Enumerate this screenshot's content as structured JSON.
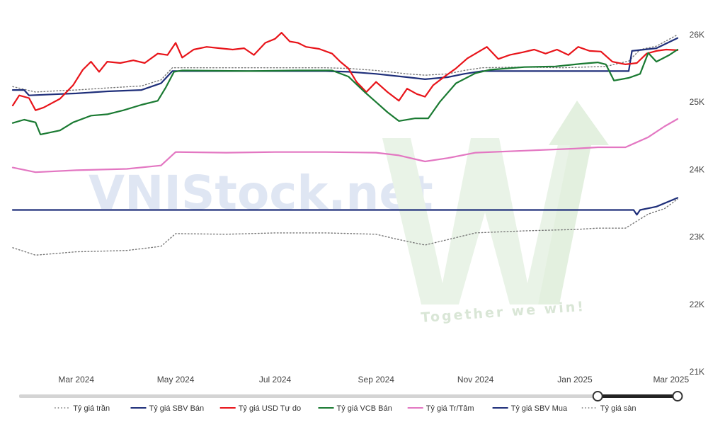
{
  "chart_data": {
    "type": "line",
    "title": "",
    "xlabel": "",
    "ylabel": "",
    "x_range": [
      "2024-01-22",
      "2025-03-05"
    ],
    "ylim": [
      21000,
      26200
    ],
    "y_ticks": [
      21000,
      22000,
      23000,
      24000,
      25000,
      26000
    ],
    "y_tick_labels": [
      "21K",
      "22K",
      "23K",
      "24K",
      "25K",
      "26K"
    ],
    "x_ticks": [
      "2024-03-01",
      "2024-05-01",
      "2024-07-01",
      "2024-09-01",
      "2024-11-01",
      "2025-01-01",
      "2025-03-01"
    ],
    "x_tick_labels": [
      "Mar 2024",
      "May 2024",
      "Jul 2024",
      "Sep 2024",
      "Nov 2024",
      "Jan 2025",
      "Mar 2025"
    ],
    "grid": false,
    "legend_position": "bottom",
    "series": [
      {
        "name": "Tỷ giá trần",
        "color": "#777777",
        "style": "dotted",
        "points": [
          [
            "2024-01-22",
            25230
          ],
          [
            "2024-02-05",
            25150
          ],
          [
            "2024-02-20",
            25170
          ],
          [
            "2024-03-01",
            25180
          ],
          [
            "2024-03-20",
            25210
          ],
          [
            "2024-04-10",
            25240
          ],
          [
            "2024-04-22",
            25330
          ],
          [
            "2024-04-29",
            25510
          ],
          [
            "2024-06-15",
            25510
          ],
          [
            "2024-08-01",
            25510
          ],
          [
            "2024-08-15",
            25500
          ],
          [
            "2024-09-01",
            25470
          ],
          [
            "2024-09-20",
            25420
          ],
          [
            "2024-10-01",
            25400
          ],
          [
            "2024-10-15",
            25420
          ],
          [
            "2024-10-25",
            25470
          ],
          [
            "2024-11-05",
            25510
          ],
          [
            "2024-12-01",
            25520
          ],
          [
            "2024-12-25",
            25510
          ],
          [
            "2025-01-20",
            25530
          ],
          [
            "2025-02-03",
            25610
          ],
          [
            "2025-02-10",
            25780
          ],
          [
            "2025-02-20",
            25830
          ],
          [
            "2025-03-05",
            26000
          ]
        ]
      },
      {
        "name": "Tỷ giá SBV Bán",
        "color": "#1f2f7a",
        "style": "solid",
        "points": [
          [
            "2024-01-22",
            25180
          ],
          [
            "2024-01-29",
            25180
          ],
          [
            "2024-02-01",
            25100
          ],
          [
            "2024-02-20",
            25120
          ],
          [
            "2024-03-01",
            25130
          ],
          [
            "2024-03-20",
            25160
          ],
          [
            "2024-04-10",
            25180
          ],
          [
            "2024-04-22",
            25280
          ],
          [
            "2024-04-29",
            25460
          ],
          [
            "2024-06-15",
            25460
          ],
          [
            "2024-08-01",
            25460
          ],
          [
            "2024-08-15",
            25450
          ],
          [
            "2024-09-01",
            25420
          ],
          [
            "2024-09-20",
            25370
          ],
          [
            "2024-10-01",
            25340
          ],
          [
            "2024-10-15",
            25370
          ],
          [
            "2024-10-25",
            25420
          ],
          [
            "2024-11-05",
            25460
          ],
          [
            "2024-12-01",
            25460
          ],
          [
            "2025-01-20",
            25460
          ],
          [
            "2025-02-03",
            25460
          ],
          [
            "2025-02-05",
            25760
          ],
          [
            "2025-02-20",
            25800
          ],
          [
            "2025-03-05",
            25950
          ]
        ]
      },
      {
        "name": "Tỷ giá USD Tự do",
        "color": "#e8141a",
        "style": "solid",
        "points": [
          [
            "2024-01-22",
            24950
          ],
          [
            "2024-01-26",
            25100
          ],
          [
            "2024-02-01",
            25060
          ],
          [
            "2024-02-05",
            24880
          ],
          [
            "2024-02-10",
            24920
          ],
          [
            "2024-02-20",
            25050
          ],
          [
            "2024-02-28",
            25250
          ],
          [
            "2024-03-05",
            25480
          ],
          [
            "2024-03-10",
            25600
          ],
          [
            "2024-03-15",
            25450
          ],
          [
            "2024-03-20",
            25600
          ],
          [
            "2024-03-28",
            25580
          ],
          [
            "2024-04-05",
            25620
          ],
          [
            "2024-04-12",
            25580
          ],
          [
            "2024-04-20",
            25720
          ],
          [
            "2024-04-26",
            25700
          ],
          [
            "2024-05-01",
            25880
          ],
          [
            "2024-05-05",
            25660
          ],
          [
            "2024-05-12",
            25780
          ],
          [
            "2024-05-20",
            25820
          ],
          [
            "2024-05-28",
            25800
          ],
          [
            "2024-06-05",
            25780
          ],
          [
            "2024-06-12",
            25800
          ],
          [
            "2024-06-18",
            25700
          ],
          [
            "2024-06-25",
            25880
          ],
          [
            "2024-07-01",
            25940
          ],
          [
            "2024-07-05",
            26030
          ],
          [
            "2024-07-10",
            25900
          ],
          [
            "2024-07-15",
            25880
          ],
          [
            "2024-07-20",
            25820
          ],
          [
            "2024-07-28",
            25790
          ],
          [
            "2024-08-05",
            25720
          ],
          [
            "2024-08-10",
            25600
          ],
          [
            "2024-08-15",
            25500
          ],
          [
            "2024-08-20",
            25300
          ],
          [
            "2024-08-26",
            25150
          ],
          [
            "2024-09-01",
            25300
          ],
          [
            "2024-09-08",
            25150
          ],
          [
            "2024-09-15",
            25020
          ],
          [
            "2024-09-20",
            25200
          ],
          [
            "2024-09-26",
            25120
          ],
          [
            "2024-10-01",
            25080
          ],
          [
            "2024-10-06",
            25250
          ],
          [
            "2024-10-13",
            25380
          ],
          [
            "2024-10-20",
            25500
          ],
          [
            "2024-10-27",
            25650
          ],
          [
            "2024-11-01",
            25720
          ],
          [
            "2024-11-08",
            25820
          ],
          [
            "2024-11-15",
            25640
          ],
          [
            "2024-11-22",
            25700
          ],
          [
            "2024-11-30",
            25740
          ],
          [
            "2024-12-07",
            25780
          ],
          [
            "2024-12-14",
            25720
          ],
          [
            "2024-12-21",
            25780
          ],
          [
            "2024-12-28",
            25700
          ],
          [
            "2025-01-03",
            25820
          ],
          [
            "2025-01-10",
            25760
          ],
          [
            "2025-01-17",
            25750
          ],
          [
            "2025-01-24",
            25600
          ],
          [
            "2025-02-01",
            25560
          ],
          [
            "2025-02-08",
            25580
          ],
          [
            "2025-02-14",
            25720
          ],
          [
            "2025-02-20",
            25760
          ],
          [
            "2025-02-26",
            25780
          ],
          [
            "2025-03-05",
            25770
          ]
        ]
      },
      {
        "name": "Tỷ giá VCB Bán",
        "color": "#1a7a32",
        "style": "solid",
        "points": [
          [
            "2024-01-22",
            24690
          ],
          [
            "2024-01-29",
            24740
          ],
          [
            "2024-02-05",
            24700
          ],
          [
            "2024-02-08",
            24520
          ],
          [
            "2024-02-20",
            24580
          ],
          [
            "2024-02-28",
            24700
          ],
          [
            "2024-03-10",
            24800
          ],
          [
            "2024-03-20",
            24820
          ],
          [
            "2024-03-30",
            24880
          ],
          [
            "2024-04-10",
            24960
          ],
          [
            "2024-04-20",
            25020
          ],
          [
            "2024-04-25",
            25220
          ],
          [
            "2024-04-30",
            25450
          ],
          [
            "2024-05-05",
            25470
          ],
          [
            "2024-06-15",
            25460
          ],
          [
            "2024-07-15",
            25470
          ],
          [
            "2024-08-05",
            25470
          ],
          [
            "2024-08-15",
            25380
          ],
          [
            "2024-08-25",
            25150
          ],
          [
            "2024-09-01",
            25000
          ],
          [
            "2024-09-08",
            24850
          ],
          [
            "2024-09-15",
            24720
          ],
          [
            "2024-09-25",
            24760
          ],
          [
            "2024-10-03",
            24760
          ],
          [
            "2024-10-10",
            25000
          ],
          [
            "2024-10-20",
            25280
          ],
          [
            "2024-11-01",
            25430
          ],
          [
            "2024-11-10",
            25480
          ],
          [
            "2024-12-01",
            25520
          ],
          [
            "2024-12-20",
            25530
          ],
          [
            "2025-01-05",
            25570
          ],
          [
            "2025-01-15",
            25590
          ],
          [
            "2025-01-20",
            25560
          ],
          [
            "2025-01-25",
            25320
          ],
          [
            "2025-02-03",
            25360
          ],
          [
            "2025-02-10",
            25420
          ],
          [
            "2025-02-15",
            25730
          ],
          [
            "2025-02-20",
            25600
          ],
          [
            "2025-02-28",
            25700
          ],
          [
            "2025-03-05",
            25780
          ]
        ]
      },
      {
        "name": "Tỷ giá Tr/Tâm",
        "color": "#e377c2",
        "style": "solid",
        "points": [
          [
            "2024-01-22",
            24030
          ],
          [
            "2024-02-05",
            23960
          ],
          [
            "2024-03-01",
            23990
          ],
          [
            "2024-04-01",
            24010
          ],
          [
            "2024-04-22",
            24060
          ],
          [
            "2024-05-01",
            24260
          ],
          [
            "2024-06-01",
            24250
          ],
          [
            "2024-07-01",
            24260
          ],
          [
            "2024-08-01",
            24260
          ],
          [
            "2024-09-01",
            24250
          ],
          [
            "2024-09-15",
            24210
          ],
          [
            "2024-10-01",
            24120
          ],
          [
            "2024-10-15",
            24170
          ],
          [
            "2024-11-01",
            24250
          ],
          [
            "2024-12-01",
            24280
          ],
          [
            "2025-01-01",
            24310
          ],
          [
            "2025-01-15",
            24330
          ],
          [
            "2025-02-01",
            24330
          ],
          [
            "2025-02-15",
            24480
          ],
          [
            "2025-02-25",
            24640
          ],
          [
            "2025-03-05",
            24750
          ]
        ]
      },
      {
        "name": "Tỷ giá SBV Mua",
        "color": "#1f2f7a",
        "style": "solid",
        "points": [
          [
            "2024-01-22",
            23400
          ],
          [
            "2024-07-01",
            23400
          ],
          [
            "2025-01-01",
            23400
          ],
          [
            "2025-02-06",
            23400
          ],
          [
            "2025-02-08",
            23330
          ],
          [
            "2025-02-10",
            23400
          ],
          [
            "2025-02-20",
            23450
          ],
          [
            "2025-03-05",
            23580
          ]
        ]
      },
      {
        "name": "Tỷ giá sàn",
        "color": "#777777",
        "style": "dotted",
        "points": [
          [
            "2024-01-22",
            22840
          ],
          [
            "2024-02-05",
            22730
          ],
          [
            "2024-03-01",
            22780
          ],
          [
            "2024-04-01",
            22800
          ],
          [
            "2024-04-22",
            22860
          ],
          [
            "2024-05-01",
            23050
          ],
          [
            "2024-06-01",
            23040
          ],
          [
            "2024-07-01",
            23060
          ],
          [
            "2024-08-01",
            23060
          ],
          [
            "2024-09-01",
            23040
          ],
          [
            "2024-09-15",
            22960
          ],
          [
            "2024-10-01",
            22880
          ],
          [
            "2024-10-15",
            22960
          ],
          [
            "2024-11-01",
            23060
          ],
          [
            "2024-12-01",
            23090
          ],
          [
            "2025-01-01",
            23110
          ],
          [
            "2025-01-15",
            23130
          ],
          [
            "2025-02-01",
            23130
          ],
          [
            "2025-02-15",
            23340
          ],
          [
            "2025-02-25",
            23420
          ],
          [
            "2025-03-05",
            23560
          ]
        ]
      }
    ]
  },
  "watermark": {
    "brand_text": "VNIStock.net",
    "slogan": "Together we win!"
  },
  "slider": {
    "start": "2025-01-15",
    "end": "2025-03-05"
  }
}
